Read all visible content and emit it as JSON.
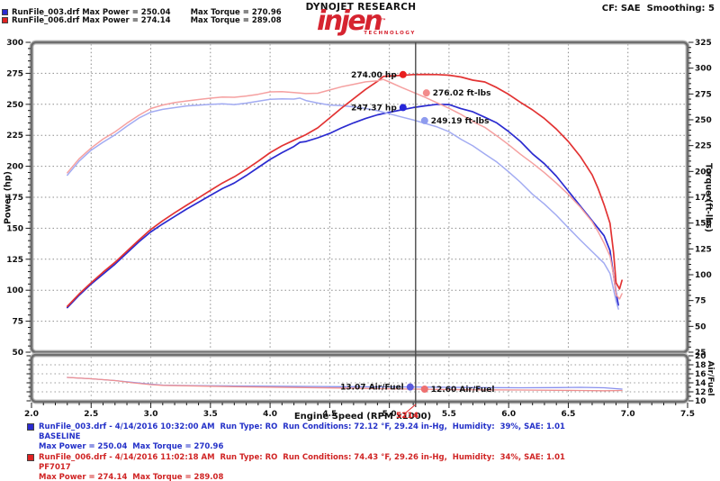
{
  "header": {
    "legend": [
      {
        "file": "RunFile_003.drf",
        "power": "Max Power = 250.04",
        "torque": "Max Torque = 270.96",
        "color": "#2b2bd0"
      },
      {
        "file": "RunFile_006.drf",
        "power": "Max Power = 274.14",
        "torque": "Max Torque = 289.08",
        "color": "#e02222"
      }
    ],
    "brand_top": "DYNOJET RESEARCH",
    "logo_word": "injen",
    "logo_tm": "™",
    "logo_sub": "TECHNOLOGY",
    "cf_label": "CF: SAE  Smoothing: 5"
  },
  "chart_data": {
    "type": "line",
    "title": "",
    "x_axis": {
      "label": "Engine Speed (RPM x1000)",
      "min": 2.0,
      "max": 7.5,
      "major": 0.5,
      "minor": 0.1
    },
    "power_axis": {
      "label": "Power (hp)",
      "min": 50,
      "max": 300,
      "major": 25,
      "minor": 5
    },
    "torque_axis": {
      "label": "Torque (ft-lbs)",
      "min": 25,
      "max": 325,
      "major": 25,
      "minor": 5
    },
    "af_axis": {
      "label": "Air/Fuel",
      "min": 10,
      "max": 20,
      "major": 2,
      "minor": 1
    },
    "grid": "dotted",
    "series": [
      {
        "name": "RunFile_003.drf Power",
        "axis": "power",
        "color": "#2b2bd0",
        "width": 1.7,
        "points": [
          [
            2.3,
            86
          ],
          [
            2.4,
            96
          ],
          [
            2.5,
            105
          ],
          [
            2.6,
            113
          ],
          [
            2.7,
            121
          ],
          [
            2.8,
            130
          ],
          [
            2.9,
            139
          ],
          [
            3.0,
            147
          ],
          [
            3.1,
            153.5
          ],
          [
            3.2,
            159.5
          ],
          [
            3.3,
            165.5
          ],
          [
            3.4,
            171
          ],
          [
            3.5,
            176.5
          ],
          [
            3.6,
            182
          ],
          [
            3.7,
            186.5
          ],
          [
            3.8,
            192.5
          ],
          [
            3.9,
            199
          ],
          [
            4.0,
            205.5
          ],
          [
            4.1,
            211
          ],
          [
            4.2,
            216
          ],
          [
            4.25,
            219.3
          ],
          [
            4.3,
            220
          ],
          [
            4.4,
            223
          ],
          [
            4.5,
            226.5
          ],
          [
            4.6,
            231
          ],
          [
            4.7,
            235
          ],
          [
            4.8,
            238.5
          ],
          [
            4.9,
            241.5
          ],
          [
            5.0,
            243.5
          ],
          [
            5.1,
            245.5
          ],
          [
            5.2,
            247.4
          ],
          [
            5.3,
            248.8
          ],
          [
            5.4,
            250
          ],
          [
            5.5,
            249.8
          ],
          [
            5.6,
            246.5
          ],
          [
            5.7,
            244
          ],
          [
            5.8,
            239.5
          ],
          [
            5.9,
            235
          ],
          [
            6.0,
            228
          ],
          [
            6.1,
            220
          ],
          [
            6.15,
            215
          ],
          [
            6.2,
            210
          ],
          [
            6.3,
            202
          ],
          [
            6.4,
            192
          ],
          [
            6.5,
            180
          ],
          [
            6.6,
            168
          ],
          [
            6.7,
            156
          ],
          [
            6.8,
            144
          ],
          [
            6.85,
            132
          ],
          [
            6.88,
            112
          ],
          [
            6.9,
            98
          ],
          [
            6.92,
            88
          ]
        ]
      },
      {
        "name": "RunFile_003.drf Torque",
        "axis": "torque",
        "color": "#a2abf2",
        "width": 1.5,
        "points": [
          [
            2.3,
            196.4
          ],
          [
            2.4,
            210.1
          ],
          [
            2.5,
            220.6
          ],
          [
            2.6,
            228.3
          ],
          [
            2.7,
            235.4
          ],
          [
            2.8,
            243.8
          ],
          [
            2.9,
            251.7
          ],
          [
            3.0,
            257.4
          ],
          [
            3.1,
            260.1
          ],
          [
            3.2,
            261.8
          ],
          [
            3.3,
            263.4
          ],
          [
            3.4,
            264.1
          ],
          [
            3.5,
            264.9
          ],
          [
            3.6,
            265.5
          ],
          [
            3.7,
            264.7
          ],
          [
            3.8,
            266.1
          ],
          [
            3.9,
            268
          ],
          [
            4.0,
            269.8
          ],
          [
            4.1,
            270.3
          ],
          [
            4.2,
            270.1
          ],
          [
            4.25,
            271
          ],
          [
            4.3,
            268.7
          ],
          [
            4.4,
            266.2
          ],
          [
            4.5,
            264.3
          ],
          [
            4.6,
            263.7
          ],
          [
            4.7,
            262.6
          ],
          [
            4.8,
            261
          ],
          [
            4.9,
            258.8
          ],
          [
            5.0,
            255.8
          ],
          [
            5.1,
            252.8
          ],
          [
            5.2,
            249.9
          ],
          [
            5.3,
            246.5
          ],
          [
            5.4,
            243.1
          ],
          [
            5.5,
            238.5
          ],
          [
            5.6,
            231.2
          ],
          [
            5.7,
            224.8
          ],
          [
            5.8,
            216.9
          ],
          [
            5.9,
            209.2
          ],
          [
            6.0,
            199.6
          ],
          [
            6.1,
            189.4
          ],
          [
            6.15,
            183.6
          ],
          [
            6.2,
            177.9
          ],
          [
            6.3,
            168.4
          ],
          [
            6.4,
            157.6
          ],
          [
            6.5,
            145.4
          ],
          [
            6.6,
            133.7
          ],
          [
            6.7,
            122.3
          ],
          [
            6.8,
            111.2
          ],
          [
            6.85,
            101.2
          ],
          [
            6.88,
            85.5
          ],
          [
            6.9,
            74.6
          ],
          [
            6.92,
            66.8
          ]
        ]
      },
      {
        "name": "RunFile_006.drf Power",
        "axis": "power",
        "color": "#e23333",
        "width": 1.7,
        "points": [
          [
            2.3,
            87
          ],
          [
            2.4,
            97
          ],
          [
            2.5,
            106
          ],
          [
            2.6,
            114.5
          ],
          [
            2.7,
            122.5
          ],
          [
            2.8,
            131.5
          ],
          [
            2.9,
            140.5
          ],
          [
            3.0,
            149
          ],
          [
            3.1,
            156
          ],
          [
            3.2,
            162.5
          ],
          [
            3.3,
            168.5
          ],
          [
            3.4,
            174.5
          ],
          [
            3.5,
            180.5
          ],
          [
            3.6,
            186.5
          ],
          [
            3.7,
            191.5
          ],
          [
            3.8,
            197.5
          ],
          [
            3.9,
            204
          ],
          [
            4.0,
            211
          ],
          [
            4.1,
            216.5
          ],
          [
            4.2,
            221
          ],
          [
            4.3,
            225.5
          ],
          [
            4.4,
            231
          ],
          [
            4.5,
            239
          ],
          [
            4.6,
            247
          ],
          [
            4.7,
            254.5
          ],
          [
            4.8,
            262
          ],
          [
            4.9,
            268.5
          ],
          [
            4.95,
            272.5
          ],
          [
            5.0,
            272.8
          ],
          [
            5.1,
            273.3
          ],
          [
            5.2,
            274
          ],
          [
            5.3,
            274.1
          ],
          [
            5.4,
            274
          ],
          [
            5.5,
            273.5
          ],
          [
            5.6,
            272
          ],
          [
            5.7,
            269.5
          ],
          [
            5.8,
            268
          ],
          [
            5.9,
            263.5
          ],
          [
            6.0,
            258
          ],
          [
            6.1,
            251.5
          ],
          [
            6.15,
            248.5
          ],
          [
            6.2,
            245.5
          ],
          [
            6.3,
            238.5
          ],
          [
            6.4,
            230
          ],
          [
            6.5,
            220
          ],
          [
            6.6,
            208
          ],
          [
            6.7,
            193
          ],
          [
            6.75,
            182
          ],
          [
            6.8,
            169
          ],
          [
            6.85,
            154
          ],
          [
            6.88,
            130
          ],
          [
            6.9,
            106
          ],
          [
            6.93,
            101
          ],
          [
            6.95,
            108
          ]
        ]
      },
      {
        "name": "RunFile_006.drf Torque",
        "axis": "torque",
        "color": "#f5a0a0",
        "width": 1.5,
        "points": [
          [
            2.3,
            198.7
          ],
          [
            2.4,
            212.3
          ],
          [
            2.5,
            222.7
          ],
          [
            2.6,
            231.3
          ],
          [
            2.7,
            238.3
          ],
          [
            2.8,
            246.7
          ],
          [
            2.9,
            254.4
          ],
          [
            3.0,
            260.9
          ],
          [
            3.1,
            264.3
          ],
          [
            3.2,
            266.7
          ],
          [
            3.3,
            268.2
          ],
          [
            3.4,
            269.6
          ],
          [
            3.5,
            270.9
          ],
          [
            3.6,
            272.1
          ],
          [
            3.7,
            271.8
          ],
          [
            3.8,
            273
          ],
          [
            3.9,
            274.7
          ],
          [
            4.0,
            277
          ],
          [
            4.1,
            277.3
          ],
          [
            4.2,
            276.4
          ],
          [
            4.3,
            275.4
          ],
          [
            4.4,
            275.7
          ],
          [
            4.5,
            278.9
          ],
          [
            4.6,
            282
          ],
          [
            4.7,
            284.4
          ],
          [
            4.8,
            286.7
          ],
          [
            4.9,
            287.8
          ],
          [
            4.95,
            289.1
          ],
          [
            5.0,
            286.6
          ],
          [
            5.1,
            281.5
          ],
          [
            5.2,
            276.7
          ],
          [
            5.3,
            271.7
          ],
          [
            5.4,
            266.4
          ],
          [
            5.5,
            261.2
          ],
          [
            5.6,
            255.2
          ],
          [
            5.7,
            248.3
          ],
          [
            5.8,
            242.7
          ],
          [
            5.9,
            234.6
          ],
          [
            6.0,
            225.8
          ],
          [
            6.1,
            216.6
          ],
          [
            6.15,
            212.2
          ],
          [
            6.2,
            208
          ],
          [
            6.3,
            198.8
          ],
          [
            6.4,
            188.7
          ],
          [
            6.5,
            177.8
          ],
          [
            6.6,
            165.5
          ],
          [
            6.7,
            151.3
          ],
          [
            6.75,
            141.6
          ],
          [
            6.8,
            130.6
          ],
          [
            6.85,
            118.1
          ],
          [
            6.88,
            99.2
          ],
          [
            6.9,
            80.7
          ],
          [
            6.93,
            76.5
          ],
          [
            6.95,
            81.6
          ]
        ]
      },
      {
        "name": "RunFile_003.drf AirFuel",
        "axis": "af",
        "color": "#8890ee",
        "width": 1.3,
        "points": [
          [
            2.3,
            15.2
          ],
          [
            2.5,
            14.9
          ],
          [
            2.7,
            14.5
          ],
          [
            2.85,
            14.1
          ],
          [
            3.0,
            13.7
          ],
          [
            3.1,
            13.5
          ],
          [
            3.3,
            13.4
          ],
          [
            3.5,
            13.35
          ],
          [
            3.7,
            13.3
          ],
          [
            4.0,
            13.25
          ],
          [
            4.3,
            13.2
          ],
          [
            4.6,
            13.15
          ],
          [
            4.9,
            13.1
          ],
          [
            5.2,
            13.07
          ],
          [
            5.5,
            13.0
          ],
          [
            5.8,
            12.95
          ],
          [
            6.1,
            12.9
          ],
          [
            6.4,
            12.95
          ],
          [
            6.6,
            13.0
          ],
          [
            6.8,
            12.9
          ],
          [
            6.95,
            12.6
          ]
        ]
      },
      {
        "name": "RunFile_006.drf AirFuel",
        "axis": "af",
        "color": "#f09090",
        "width": 1.3,
        "points": [
          [
            2.3,
            15.2
          ],
          [
            2.5,
            14.9
          ],
          [
            2.7,
            14.5
          ],
          [
            2.85,
            14.0
          ],
          [
            3.0,
            13.6
          ],
          [
            3.1,
            13.45
          ],
          [
            3.3,
            13.35
          ],
          [
            3.5,
            13.25
          ],
          [
            3.7,
            13.15
          ],
          [
            4.0,
            13.05
          ],
          [
            4.3,
            12.95
          ],
          [
            4.6,
            12.85
          ],
          [
            4.9,
            12.7
          ],
          [
            5.2,
            12.6
          ],
          [
            5.5,
            12.5
          ],
          [
            5.8,
            12.45
          ],
          [
            6.1,
            12.4
          ],
          [
            6.4,
            12.35
          ],
          [
            6.6,
            12.3
          ],
          [
            6.8,
            12.25
          ],
          [
            6.95,
            12.3
          ]
        ]
      }
    ],
    "legend_position": "top-left",
    "cursor": {
      "rpm": 5.22,
      "rpm_label": "5214",
      "labels": [
        {
          "text": "274.00 hp",
          "axis": "power",
          "value": 274.0,
          "side": "left",
          "dx": -14,
          "dot": "#e81f1f"
        },
        {
          "text": "276.02 ft-lbs",
          "axis": "torque",
          "value": 276.02,
          "side": "right",
          "dx": 12,
          "dot": "#f28b8b"
        },
        {
          "text": "247.37 hp",
          "axis": "power",
          "value": 247.37,
          "side": "left",
          "dx": -14,
          "dot": "#2626d8"
        },
        {
          "text": "249.19 ft-lbs",
          "axis": "torque",
          "value": 249.19,
          "side": "right",
          "dx": 10,
          "dot": "#8e9bee"
        },
        {
          "text": "13.07 Air/Fuel",
          "axis": "af",
          "value": 13.07,
          "side": "left",
          "dx": -6,
          "dot": "#5b5bdd"
        },
        {
          "text": "12.60 Air/Fuel",
          "axis": "af",
          "value": 12.6,
          "side": "right",
          "dx": 10,
          "dot": "#ee7070"
        }
      ]
    }
  },
  "footer": {
    "runs": [
      {
        "color": "#2431c8",
        "line1": "RunFile_003.drf - 4/14/2016 10:32:00 AM  Run Type: RO  Run Conditions: 72.12 °F, 29.24 in-Hg,  Humidity:  39%, SAE: 1.01",
        "line2": "BASELINE",
        "line3": "Max Power = 250.04  Max Torque = 270.96"
      },
      {
        "color": "#d02525",
        "line1": "RunFile_006.drf - 4/14/2016 11:02:18 AM  Run Type: RO  Run Conditions: 74.43 °F, 29.26 in-Hg,  Humidity:  34%, SAE: 1.01",
        "line2": "PF7017",
        "line3": "Max Power = 274.14  Max Torque = 289.08"
      }
    ]
  }
}
